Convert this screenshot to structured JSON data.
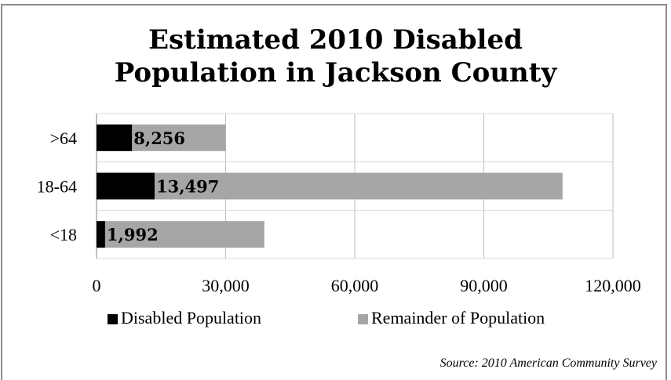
{
  "chart_data": {
    "type": "bar",
    "orientation": "horizontal",
    "stacked": true,
    "title_lines": [
      "Estimated 2010 Disabled",
      "Population in Jackson County"
    ],
    "categories": [
      ">64",
      "18-64",
      "<18"
    ],
    "series": [
      {
        "name": "Disabled Population",
        "values": [
          8256,
          13497,
          1992
        ],
        "color": "#000000"
      },
      {
        "name": "Remainder of Population",
        "values": [
          21744,
          94803,
          37008
        ],
        "color": "#a6a6a6"
      }
    ],
    "data_labels": [
      "8,256",
      "13,497",
      "1,992"
    ],
    "xlim": [
      0,
      120000
    ],
    "x_ticks": [
      "0",
      "30,000",
      "60,000",
      "90,000",
      "120,000"
    ],
    "x_tick_values": [
      0,
      30000,
      60000,
      90000,
      120000
    ],
    "grid": true,
    "legend_position": "bottom"
  },
  "source_note": "Source: 2010 American Community Survey"
}
